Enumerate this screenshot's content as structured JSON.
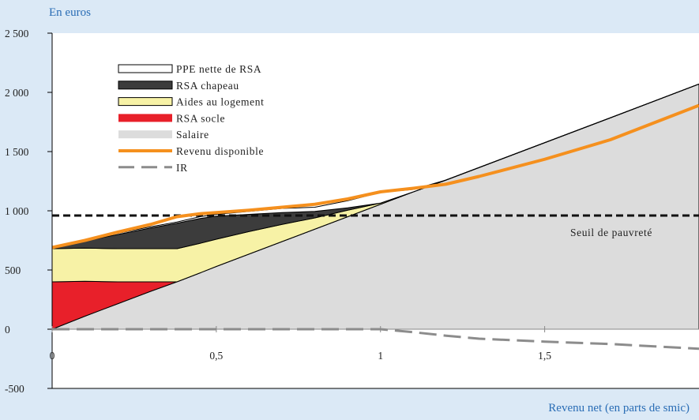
{
  "unit_label": "En euros",
  "xlabel": "Revenu net (en parts de smic)",
  "colors": {
    "background": "#dbe9f6",
    "plot_background": "#ffffff",
    "salaire": "#dcdcdc",
    "rsa_socle": "#e8202a",
    "aides_logement": "#f7f2a6",
    "rsa_chapeau": "#3c3c3c",
    "ppe": "#ffffff",
    "revenu_disponible": "#f5901e",
    "ir": "#8c8c8c",
    "seuil": "#111111"
  },
  "chart_data": {
    "type": "area",
    "xlim": [
      0,
      1.97
    ],
    "ylim": [
      -500,
      2500
    ],
    "xticks": [
      "0",
      "0,5",
      "1",
      "1,5"
    ],
    "xtick_values": [
      0,
      0.5,
      1,
      1.5
    ],
    "yticks": [
      "2 500",
      "2 000",
      "1 500",
      "1 000",
      "500",
      "0",
      "-500"
    ],
    "ytick_values": [
      2500,
      2000,
      1500,
      1000,
      500,
      0,
      -500
    ],
    "legend": [
      {
        "key": "ppe",
        "label": "PPE nette de RSA"
      },
      {
        "key": "rsa_chapeau",
        "label": "RSA chapeau"
      },
      {
        "key": "aides_logement",
        "label": "Aides au logement"
      },
      {
        "key": "rsa_socle",
        "label": "RSA socle"
      },
      {
        "key": "salaire",
        "label": "Salaire"
      },
      {
        "key": "revenu_disponible",
        "label": "Revenu disponible"
      },
      {
        "key": "ir",
        "label": "IR"
      }
    ],
    "x": [
      0,
      0.1,
      0.2,
      0.3,
      0.38,
      0.45,
      0.5,
      0.6,
      0.7,
      0.8,
      0.9,
      1.0,
      1.1,
      1.2,
      1.3,
      1.5,
      1.7,
      1.97
    ],
    "series": [
      {
        "key": "salaire",
        "values": [
          0,
          110,
          215,
          320,
          400,
          475,
          530,
          635,
          740,
          845,
          950,
          1055,
          1160,
          1260,
          1365,
          1575,
          1785,
          2070
        ]
      },
      {
        "key": "rsa_socle",
        "values": [
          400,
          295,
          185,
          80,
          0,
          0,
          0,
          0,
          0,
          0,
          0,
          0,
          0,
          0,
          0,
          0,
          0,
          0
        ]
      },
      {
        "key": "aides_logement",
        "values": [
          280,
          280,
          280,
          280,
          280,
          250,
          230,
          190,
          145,
          95,
          55,
          10,
          0,
          0,
          0,
          0,
          0,
          0
        ]
      },
      {
        "key": "rsa_chapeau",
        "values": [
          0,
          60,
          120,
          175,
          215,
          210,
          195,
          145,
          100,
          55,
          20,
          0,
          0,
          0,
          0,
          0,
          0,
          0
        ]
      },
      {
        "key": "ppe",
        "values": [
          10,
          10,
          10,
          10,
          10,
          15,
          15,
          25,
          35,
          35,
          60,
          90,
          20,
          0,
          0,
          0,
          0,
          0
        ]
      },
      {
        "key": "revenu_disponible",
        "values": [
          690,
          750,
          820,
          885,
          950,
          975,
          985,
          1005,
          1030,
          1055,
          1100,
          1160,
          1190,
          1225,
          1290,
          1435,
          1600,
          1890
        ]
      },
      {
        "key": "ir",
        "values": [
          0,
          0,
          0,
          0,
          0,
          0,
          0,
          0,
          0,
          0,
          0,
          0,
          -25,
          -55,
          -80,
          -105,
          -125,
          -165
        ]
      }
    ],
    "seuil": {
      "label": "Seuil de pauvreté",
      "value": 960
    }
  }
}
